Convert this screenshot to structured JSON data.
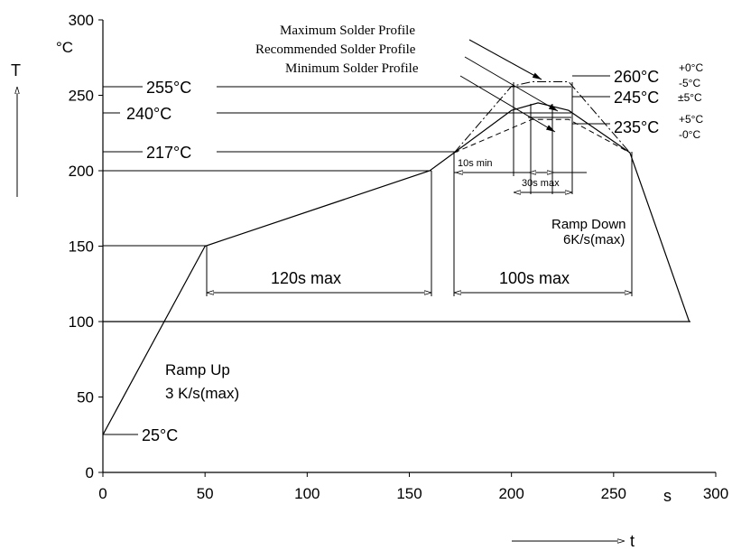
{
  "chart_data": {
    "type": "line",
    "title": "",
    "xlabel": "t",
    "ylabel": "T",
    "x_unit": "s",
    "y_unit": "°C",
    "xlim": [
      0,
      300
    ],
    "ylim": [
      0,
      300
    ],
    "x_ticks": [
      0,
      50,
      100,
      150,
      200,
      250,
      300
    ],
    "y_ticks": [
      0,
      50,
      100,
      150,
      200,
      250,
      300
    ],
    "grid": false,
    "series": [
      {
        "name": "",
        "style": "solid",
        "points": [
          [
            0,
            25
          ],
          [
            50,
            150
          ],
          [
            160,
            200
          ],
          [
            172,
            212
          ],
          [
            200,
            240
          ],
          [
            213,
            245
          ],
          [
            228,
            240
          ],
          [
            258,
            212
          ],
          [
            287,
            100
          ]
        ]
      },
      {
        "name": "Maximum Solder Profile",
        "style": "dash-dot",
        "points": [
          [
            172,
            212
          ],
          [
            200,
            256
          ],
          [
            210,
            259
          ],
          [
            228,
            259
          ],
          [
            258,
            212
          ]
        ]
      },
      {
        "name": "Minimum Solder Profile",
        "style": "dashed",
        "points": [
          [
            172,
            212
          ],
          [
            210,
            234
          ],
          [
            228,
            234
          ],
          [
            258,
            212
          ]
        ]
      }
    ],
    "reference_lines": [
      {
        "label": "255°C",
        "y": 255
      },
      {
        "label": "240°C",
        "y": 240
      },
      {
        "label": "217°C",
        "y": 217
      },
      {
        "label": "",
        "y": 200
      },
      {
        "label": "",
        "y": 150
      },
      {
        "label": "",
        "y": 100
      },
      {
        "label": "25°C",
        "y": 25
      }
    ],
    "dimension_labels": [
      {
        "label": "120s max",
        "from": 50,
        "to": 160
      },
      {
        "label": "100s max",
        "from": 172,
        "to": 258
      },
      {
        "label": "10s min"
      },
      {
        "label": "30s max"
      }
    ],
    "profile_labels": {
      "max": "Maximum Solder Profile",
      "recommended": "Recommended Solder Profile",
      "min": "Minimum Solder Profile"
    },
    "peak_labels": {
      "p260": "260°C",
      "p260_plus": "+0°C",
      "p260_minus": "-5°C",
      "p245": "245°C",
      "p245_tol": "±5°C",
      "p235": "235°C",
      "p235_plus": "+5°C",
      "p235_minus": "-0°C"
    },
    "annotations": {
      "ramp_up_1": "Ramp Up",
      "ramp_up_2": "3 K/s(max)",
      "ramp_down_1": "Ramp Down",
      "ramp_down_2": "6K/s(max)"
    }
  }
}
